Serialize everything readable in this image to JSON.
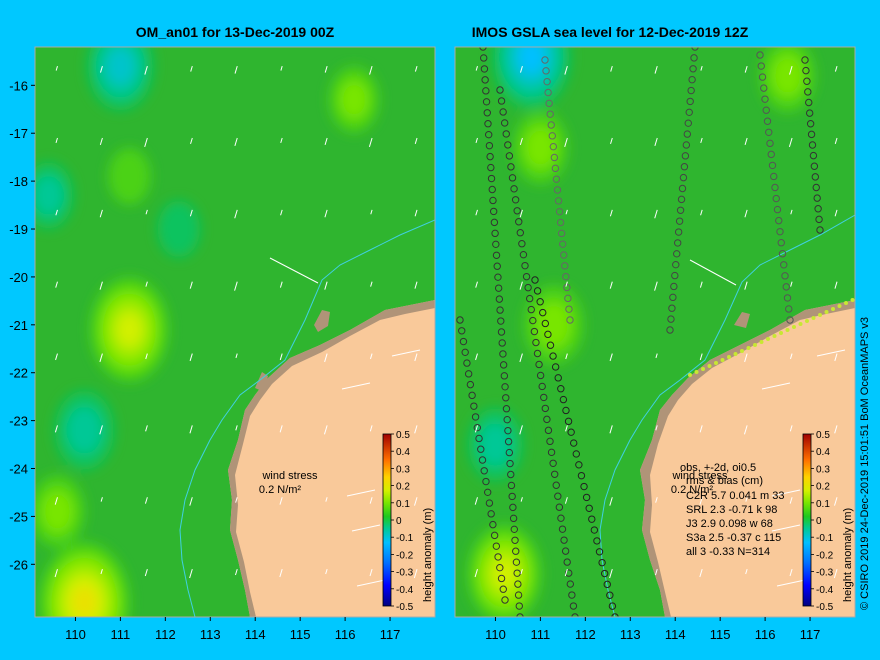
{
  "chart_data": [
    {
      "type": "heatmap",
      "title": "OM_an01 for 13-Dec-2019 00Z",
      "xlim": [
        109.1,
        118.0
      ],
      "ylim": [
        -27.1,
        -15.2
      ],
      "x_ticks": [
        110,
        111,
        112,
        113,
        114,
        115,
        116,
        117
      ],
      "y_ticks": [
        -16,
        -17,
        -18,
        -19,
        -20,
        -21,
        -22,
        -23,
        -24,
        -25,
        -26
      ],
      "wind_label": "wind stress",
      "wind_scale": "0.2 N/m²",
      "colorbar_label": "height anomaly (m)",
      "colorbar_ticks": [
        "0.5",
        "0.4",
        "0.3",
        "0.2",
        "0.1",
        "0",
        "-0.1",
        "-0.2",
        "-0.3",
        "-0.4",
        "-0.5"
      ],
      "features": [
        {
          "label": "high",
          "lon": 111.2,
          "lat": -21.1,
          "value": 0.2
        },
        {
          "label": "high",
          "lon": 110.2,
          "lat": -26.8,
          "value": 0.25
        },
        {
          "label": "high",
          "lon": 116.2,
          "lat": -16.3,
          "value": 0.08
        },
        {
          "label": "high",
          "lon": 111.2,
          "lat": -17.9,
          "value": 0.05
        },
        {
          "label": "high",
          "lon": 109.6,
          "lat": -24.9,
          "value": 0.1
        },
        {
          "label": "low",
          "lon": 111.0,
          "lat": -15.6,
          "value": -0.15
        },
        {
          "label": "low",
          "lon": 110.2,
          "lat": -23.2,
          "value": -0.12
        },
        {
          "label": "low",
          "lon": 112.3,
          "lat": -19.0,
          "value": -0.05
        },
        {
          "label": "low",
          "lon": 109.4,
          "lat": -18.3,
          "value": -0.08
        }
      ]
    },
    {
      "type": "heatmap",
      "title": "IMOS GSLA sea level  for 12-Dec-2019 12Z",
      "xlim": [
        109.1,
        118.0
      ],
      "ylim": [
        -27.1,
        -15.2
      ],
      "x_ticks": [
        110,
        111,
        112,
        113,
        114,
        115,
        116,
        117
      ],
      "wind_label": "wind stress",
      "wind_scale": "0.2 N/m²",
      "colorbar_label": "height anomaly (m)",
      "colorbar_ticks": [
        "0.5",
        "0.4",
        "0.3",
        "0.2",
        "0.1",
        "0",
        "-0.1",
        "-0.2",
        "-0.3",
        "-0.4",
        "-0.5"
      ],
      "stats_header": "obs, +-2d, oi0.5",
      "stats_subheader": "rms & bias (cm)",
      "stats": [
        {
          "sat": "C2R",
          "rms": "5.7",
          "bias": "0.041",
          "code": "m",
          "n": "33"
        },
        {
          "sat": "SRL",
          "rms": "2.3",
          "bias": "-0.71",
          "code": "k",
          "n": "98"
        },
        {
          "sat": "J3",
          "rms": "2.9",
          "bias": "0.098",
          "code": "w",
          "n": "68"
        },
        {
          "sat": "S3a",
          "rms": "2.5",
          "bias": "-0.37",
          "code": "c",
          "n": "115"
        },
        {
          "sat": "all",
          "rms": "3",
          "bias": "-0.33",
          "code": "",
          "n": "N=314"
        }
      ],
      "features": [
        {
          "label": "high",
          "lon": 111.3,
          "lat": -21.0,
          "value": 0.12
        },
        {
          "label": "high",
          "lon": 110.2,
          "lat": -26.2,
          "value": 0.18
        },
        {
          "label": "high",
          "lon": 111.0,
          "lat": -17.3,
          "value": 0.1
        },
        {
          "label": "high",
          "lon": 116.5,
          "lat": -15.8,
          "value": 0.1
        },
        {
          "label": "low",
          "lon": 110.8,
          "lat": -15.4,
          "value": -0.2
        },
        {
          "label": "low",
          "lon": 110.0,
          "lat": -23.5,
          "value": -0.1
        }
      ]
    }
  ],
  "credit": "© CSIRO 2019   24-Dec-2019 15:01:51 BoM OceanMAPS v3"
}
